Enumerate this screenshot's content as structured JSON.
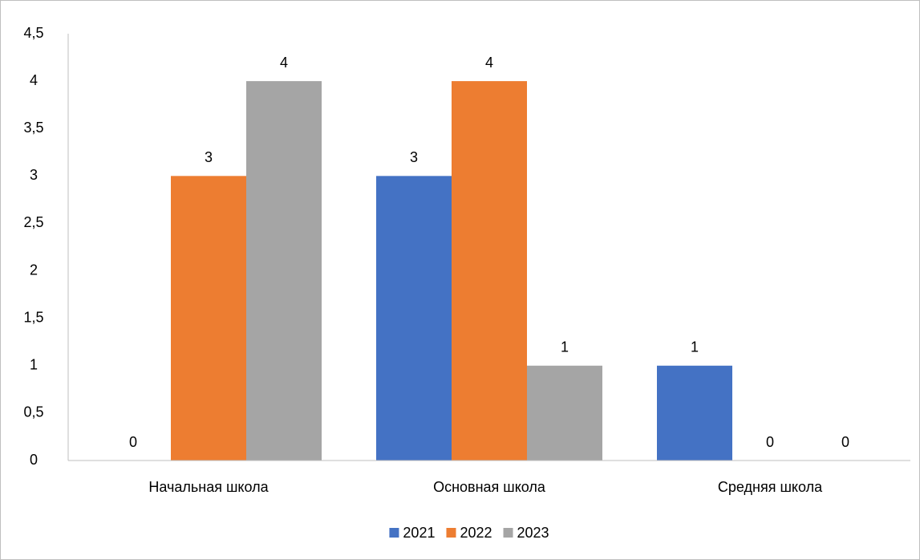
{
  "chart_data": {
    "type": "bar",
    "categories": [
      "Начальная школа",
      "Основная школа",
      "Средняя школа"
    ],
    "series": [
      {
        "name": "2021",
        "color": "#4472c4",
        "values": [
          0,
          3,
          1
        ]
      },
      {
        "name": "2022",
        "color": "#ed7d31",
        "values": [
          3,
          4,
          0
        ]
      },
      {
        "name": "2023",
        "color": "#a5a5a5",
        "values": [
          4,
          1,
          0
        ]
      }
    ],
    "ylim": [
      0,
      4.5
    ],
    "yticks": [
      0,
      {
        "value": 0.5,
        "label": "0,5"
      },
      1,
      {
        "value": 1.5,
        "label": "1,5"
      },
      2,
      {
        "value": 2.5,
        "label": "2,5"
      },
      3,
      {
        "value": 3.5,
        "label": "3,5"
      },
      4,
      {
        "value": 4.5,
        "label": "4,5"
      }
    ],
    "grid": false,
    "legend": "bottom"
  }
}
